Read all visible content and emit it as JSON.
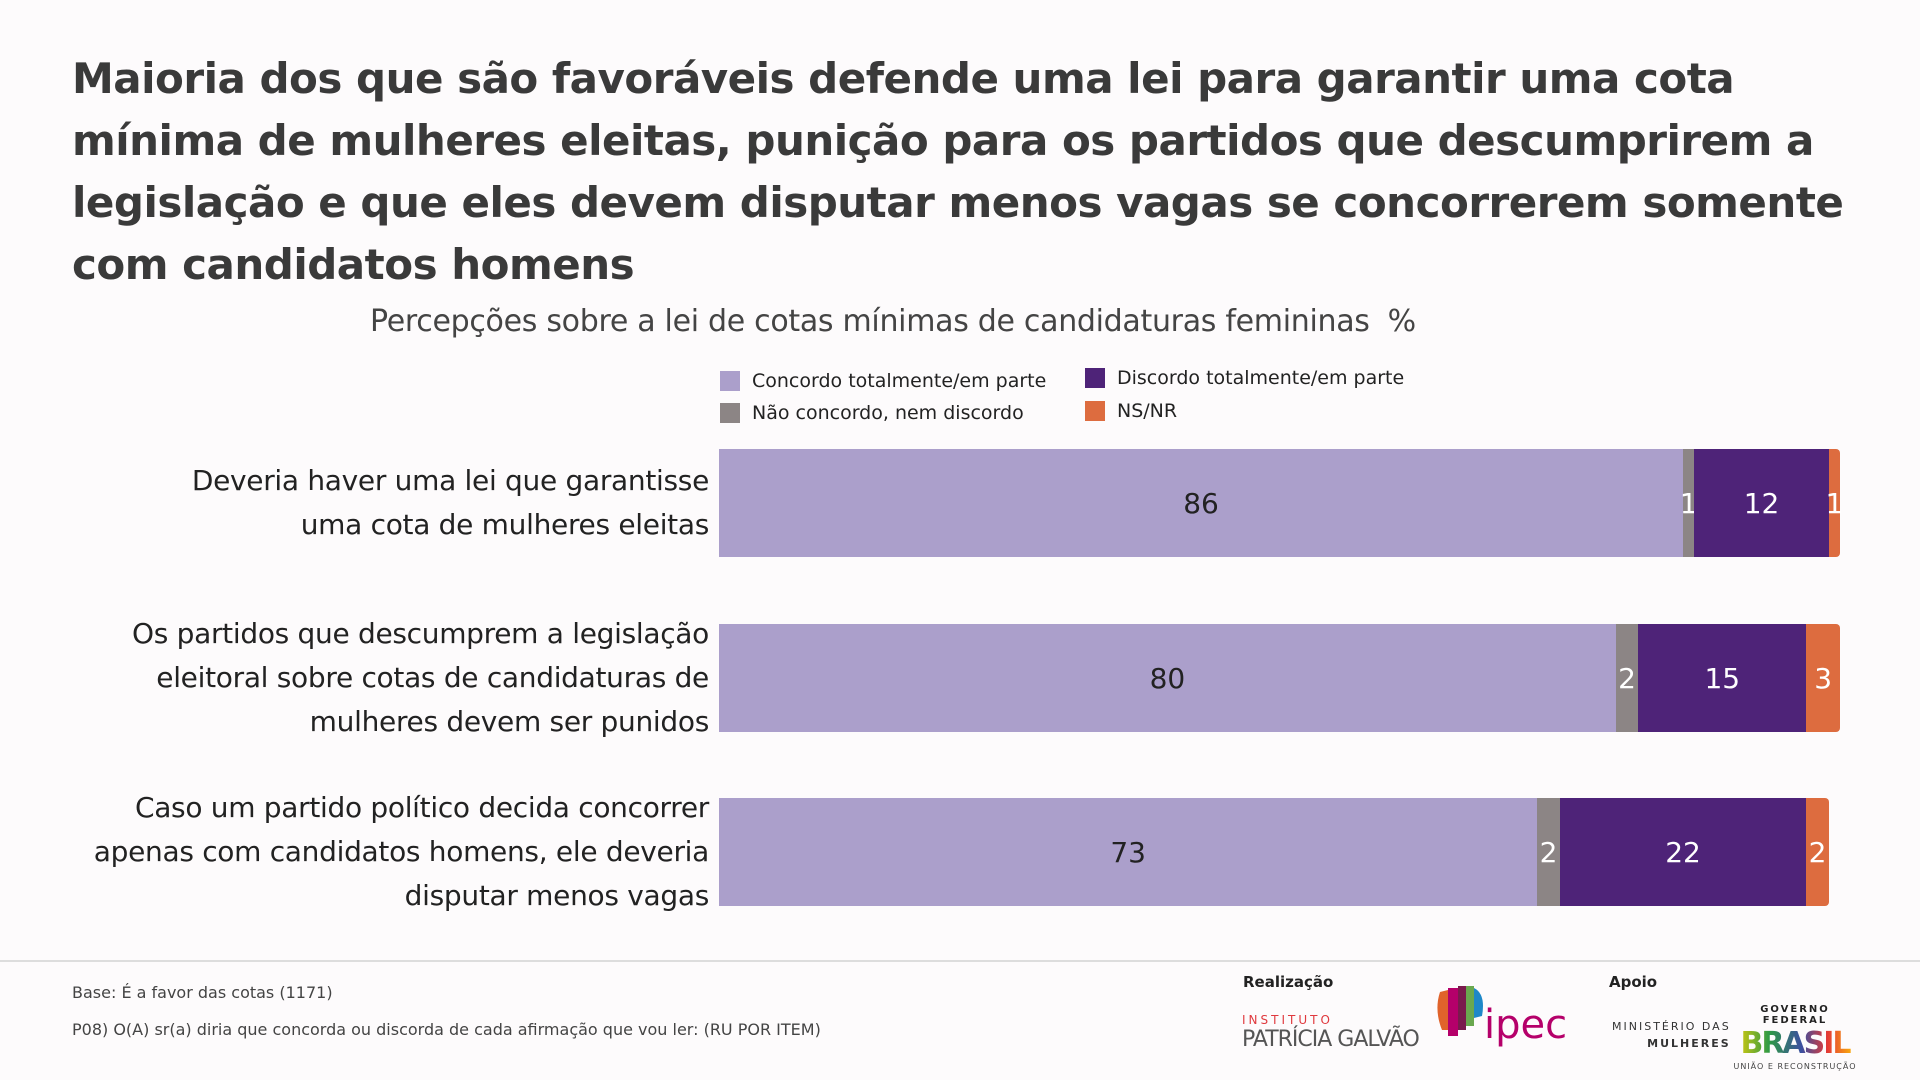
{
  "title": "Maioria dos que são favoráveis defende uma lei para garantir uma cota mínima de mulheres eleitas, punição para os partidos que descumprirem a legislação e que eles devem disputar menos vagas se concorrerem somente com candidatos homens",
  "chart_data": {
    "type": "bar",
    "orientation": "horizontal",
    "stacked": true,
    "title": "Percepções sobre a lei de cotas mínimas de candidaturas femininas",
    "unit": "%",
    "legend_position": "top",
    "categories": [
      "Deveria haver uma lei que garantisse uma cota de mulheres eleitas",
      "Os partidos que descumprem a legislação eleitoral sobre cotas de candidaturas de mulheres devem ser punidos",
      "Caso um partido político decida concorrer apenas com candidatos homens, ele deveria disputar menos vagas"
    ],
    "category_lines": [
      [
        "Deveria haver uma lei que garantisse",
        "uma cota de mulheres eleitas"
      ],
      [
        "Os partidos que descumprem a legislação",
        "eleitoral sobre cotas de candidaturas de",
        "mulheres devem ser punidos"
      ],
      [
        "Caso um partido político decida concorrer",
        "apenas com candidatos homens, ele deveria",
        "disputar menos vagas"
      ]
    ],
    "series": [
      {
        "name": "Concordo totalmente/em parte",
        "color": "#ab9fcb",
        "label_color": "#222222",
        "values": [
          86,
          80,
          73
        ]
      },
      {
        "name": "Não concordo, nem discordo",
        "color": "#8c8585",
        "label_color": "#ffffff",
        "values": [
          1,
          2,
          2
        ]
      },
      {
        "name": "Discordo totalmente/em parte",
        "color": "#4e2378",
        "label_color": "#ffffff",
        "values": [
          12,
          15,
          22
        ]
      },
      {
        "name": "NS/NR",
        "color": "#dd6c3f",
        "label_color": "#ffffff",
        "values": [
          1,
          3,
          2
        ]
      }
    ],
    "xlim": [
      0,
      100
    ],
    "grid": false
  },
  "footer": {
    "base": "Base: É a favor das cotas (1171)",
    "question": "P08) O(A) sr(a) diria que concorda ou discorda de cada afirmação que vou ler: (RU POR ITEM)",
    "realizacao": "Realização",
    "apoio": "Apoio",
    "logos": {
      "patricia": [
        "INSTITUTO",
        "PATRÍCIA GALVÃO"
      ],
      "ipec": "ipec",
      "ministerio": [
        "MINISTÉRIO DAS",
        "MULHERES"
      ],
      "governo": [
        "GOVERNO FEDERAL",
        "BRASIL",
        "UNIÃO E RECONSTRUÇÃO"
      ]
    }
  }
}
